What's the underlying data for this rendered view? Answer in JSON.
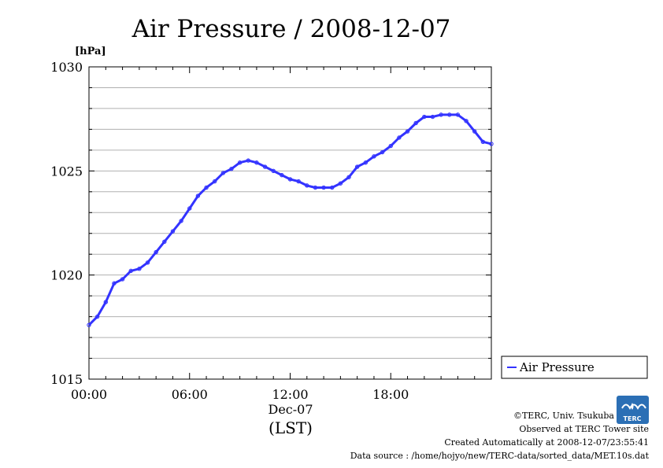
{
  "chart_data": {
    "type": "line",
    "title": "Air Pressure / 2008-12-07",
    "ylabel": "[hPa]",
    "xlabel": "Dec-07",
    "xlabel2": "(LST)",
    "ylim": [
      1015,
      1030
    ],
    "xlim": [
      0,
      24
    ],
    "y_ticks": [
      "1015",
      "1020",
      "1025",
      "1030"
    ],
    "x_ticks": [
      {
        "value": 0,
        "label": "00:00"
      },
      {
        "value": 6,
        "label": "06:00"
      },
      {
        "value": 12,
        "label": "12:00"
      },
      {
        "value": 18,
        "label": "18:00"
      }
    ],
    "grid": true,
    "legend": "right",
    "series": [
      {
        "name": "Air Pressure",
        "color": "#3333ff",
        "points": [
          [
            0.0,
            1017.6
          ],
          [
            0.5,
            1018.0
          ],
          [
            1.0,
            1018.7
          ],
          [
            1.5,
            1019.6
          ],
          [
            2.0,
            1019.8
          ],
          [
            2.5,
            1020.2
          ],
          [
            3.0,
            1020.3
          ],
          [
            3.5,
            1020.6
          ],
          [
            4.0,
            1021.1
          ],
          [
            4.5,
            1021.6
          ],
          [
            5.0,
            1022.1
          ],
          [
            5.5,
            1022.6
          ],
          [
            6.0,
            1023.2
          ],
          [
            6.5,
            1023.8
          ],
          [
            7.0,
            1024.2
          ],
          [
            7.5,
            1024.5
          ],
          [
            8.0,
            1024.9
          ],
          [
            8.5,
            1025.1
          ],
          [
            9.0,
            1025.4
          ],
          [
            9.5,
            1025.5
          ],
          [
            10.0,
            1025.4
          ],
          [
            10.5,
            1025.2
          ],
          [
            11.0,
            1025.0
          ],
          [
            11.5,
            1024.8
          ],
          [
            12.0,
            1024.6
          ],
          [
            12.5,
            1024.5
          ],
          [
            13.0,
            1024.3
          ],
          [
            13.5,
            1024.2
          ],
          [
            14.0,
            1024.2
          ],
          [
            14.5,
            1024.2
          ],
          [
            15.0,
            1024.4
          ],
          [
            15.5,
            1024.7
          ],
          [
            16.0,
            1025.2
          ],
          [
            16.5,
            1025.4
          ],
          [
            17.0,
            1025.7
          ],
          [
            17.5,
            1025.9
          ],
          [
            18.0,
            1026.2
          ],
          [
            18.5,
            1026.6
          ],
          [
            19.0,
            1026.9
          ],
          [
            19.5,
            1027.3
          ],
          [
            20.0,
            1027.6
          ],
          [
            20.5,
            1027.6
          ],
          [
            21.0,
            1027.7
          ],
          [
            21.5,
            1027.7
          ],
          [
            22.0,
            1027.7
          ],
          [
            22.5,
            1027.4
          ],
          [
            23.0,
            1026.9
          ],
          [
            23.5,
            1026.4
          ],
          [
            24.0,
            1026.3
          ]
        ]
      }
    ]
  },
  "credits": {
    "copyright": "©TERC, Univ. Tsukuba",
    "site": "Observed at TERC Tower site",
    "created": "Created Automatically at 2008-12-07/23:55:41",
    "source": "Data source : /home/hojyo/new/TERC-data/sorted_data/MET.10s.dat",
    "logo_text": "TERC"
  }
}
